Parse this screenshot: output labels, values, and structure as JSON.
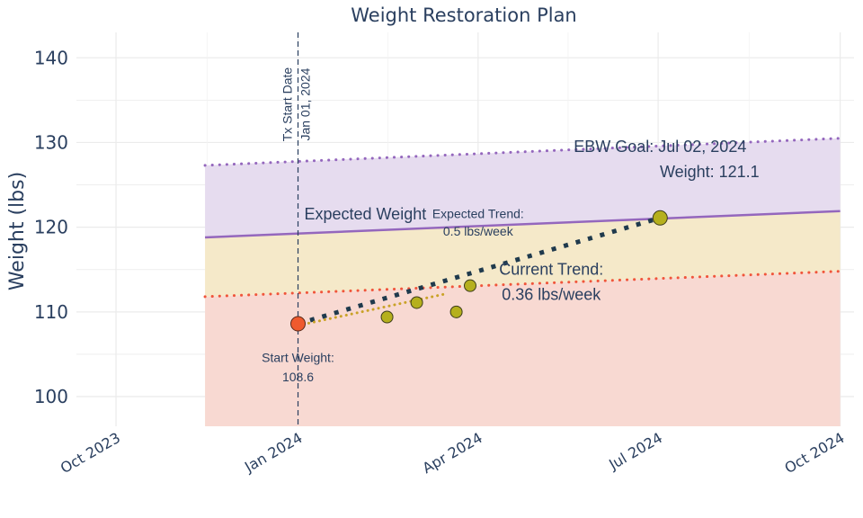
{
  "chart_data": {
    "type": "line",
    "title": "Weight Restoration Plan",
    "ylabel": "Weight (lbs)",
    "xlabel": "",
    "ylim": [
      96.5,
      143
    ],
    "xlim": [
      "2023-09-11",
      "2024-10-08"
    ],
    "yticks": [
      100,
      110,
      120,
      130,
      140
    ],
    "xticks": [
      {
        "date": "2023-10-01",
        "label": "Oct 2023"
      },
      {
        "date": "2024-01-01",
        "label": "Jan 2024"
      },
      {
        "date": "2024-04-01",
        "label": "Apr 2024"
      },
      {
        "date": "2024-07-01",
        "label": "Jul 2024"
      },
      {
        "date": "2024-10-01",
        "label": "Oct 2024"
      }
    ],
    "grid": true,
    "band_dates": [
      "2023-11-15",
      "2024-10-01"
    ],
    "bands": [
      {
        "bottom_weight": 96.5,
        "top_weight_start": 111.8,
        "top_weight_end": 114.8,
        "color": "#f8d9d2"
      },
      {
        "top_weight_start": 118.8,
        "top_weight_end": 121.9,
        "color": "#f5e9c9"
      },
      {
        "top_weight_start": 127.3,
        "top_weight_end": 130.5,
        "color": "#e6dcef"
      }
    ],
    "lines": [
      {
        "label": "Expected Weight",
        "start_weight": 118.8,
        "end_weight": 121.9,
        "color": "#9467bd",
        "style": "solid"
      },
      {
        "start_weight": 127.3,
        "end_weight": 130.5,
        "color": "#9467bd",
        "style": "dotted"
      },
      {
        "start_weight": 111.8,
        "end_weight": 114.8,
        "color": "#f0553b",
        "style": "dotted"
      }
    ],
    "expected_trend": {
      "dates": [
        "2024-01-01",
        "2024-07-02"
      ],
      "weights": [
        108.6,
        121.1
      ],
      "color": "#1f3a4d"
    },
    "current_trend": {
      "dates": [
        "2024-01-01",
        "2024-03-15"
      ],
      "weights": [
        108.4,
        112.1
      ],
      "color": "#c9a227"
    },
    "observations": [
      {
        "date": "2024-02-15",
        "weight": 109.4
      },
      {
        "date": "2024-03-01",
        "weight": 111.1
      },
      {
        "date": "2024-03-21",
        "weight": 110.0
      },
      {
        "date": "2024-03-28",
        "weight": 113.1
      }
    ],
    "start_point": {
      "date": "2024-01-01",
      "weight": 108.6,
      "color": "#ef5a2e"
    },
    "goal_point": {
      "date": "2024-07-02",
      "weight": 121.1,
      "color": "#b5b01d"
    },
    "tx_start_date": "2024-01-01",
    "annotations": [
      {
        "id": "tx1",
        "text": "Tx Start Date",
        "date": "2024-01-01",
        "weight": 134.5,
        "rotate": -90,
        "size": 14,
        "dx": -7,
        "color": "#1f3a4d"
      },
      {
        "id": "tx2",
        "text": "Jan 01, 2024",
        "date": "2024-01-01",
        "weight": 134.5,
        "rotate": -90,
        "size": 14,
        "dx": 13,
        "color": "#1f3a4d"
      },
      {
        "id": "expw",
        "text": "Expected Weight",
        "date": "2024-02-04",
        "weight": 120.9,
        "size": 18,
        "color": "#9467bd"
      },
      {
        "id": "et1",
        "text": "Expected Trend:",
        "date": "2024-04-01",
        "weight": 121.1,
        "size": 14,
        "color": "#1f3a4d"
      },
      {
        "id": "et2",
        "text": "0.5 lbs/week",
        "date": "2024-04-01",
        "weight": 119.0,
        "size": 14,
        "color": "#1f3a4d"
      },
      {
        "id": "ct1",
        "text": "Current Trend:",
        "date": "2024-05-08",
        "weight": 114.4,
        "size": 18,
        "color": "#1f3a4d"
      },
      {
        "id": "ct2",
        "text": "0.36 lbs/week",
        "date": "2024-05-08",
        "weight": 111.4,
        "size": 18,
        "color": "#1f3a4d"
      },
      {
        "id": "goal1",
        "text": "EBW Goal: Jul 02, 2024",
        "date": "2024-07-02",
        "weight": 128.9,
        "size": 18,
        "color": "#2a3f5f"
      },
      {
        "id": "goal2",
        "text": "Weight: 121.1",
        "date": "2024-07-27",
        "weight": 125.9,
        "size": 18,
        "color": "#2a3f5f"
      },
      {
        "id": "sw1",
        "text": "Start Weight:",
        "date": "2024-01-01",
        "weight": 104.1,
        "size": 14,
        "color": "#1f3a4d"
      },
      {
        "id": "sw2",
        "text": "108.6",
        "date": "2024-01-01",
        "weight": 101.8,
        "size": 14,
        "color": "#1f3a4d"
      }
    ]
  }
}
